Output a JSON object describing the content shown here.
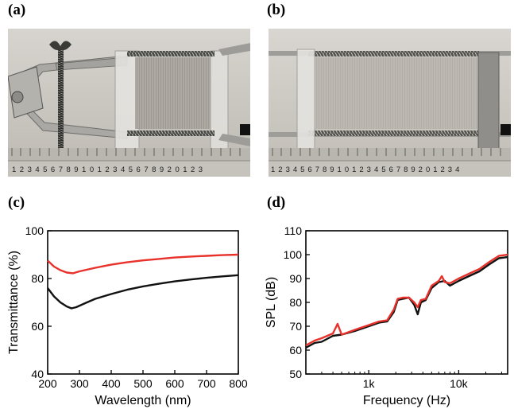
{
  "panels": {
    "a": {
      "label": "(a)"
    },
    "b": {
      "label": "(b)"
    },
    "c": {
      "label": "(c)"
    },
    "d": {
      "label": "(d)"
    }
  },
  "photos": {
    "a": {
      "description": "device with clamp and springs on ruler",
      "ruler_digits": "1234567891012345678920123"
    },
    "b": {
      "description": "stretched device on ruler",
      "ruler_digits": "12345678910123456789201234"
    }
  },
  "colors": {
    "red": "#e8312a",
    "black": "#111111",
    "axis": "#000000"
  },
  "chart_data": [
    {
      "type": "line",
      "xlabel": "Wavelength (nm)",
      "ylabel": "Transmittance (%)",
      "xlim": [
        200,
        800
      ],
      "ylim": [
        40,
        100
      ],
      "xticks": [
        200,
        300,
        400,
        500,
        600,
        700,
        800
      ],
      "yticks": [
        40,
        60,
        80,
        100
      ],
      "grid": false,
      "series": [
        {
          "color": "#e8312a",
          "x": [
            200,
            220,
            240,
            260,
            280,
            300,
            350,
            400,
            450,
            500,
            550,
            600,
            650,
            700,
            750,
            800
          ],
          "y": [
            87.5,
            85,
            83.5,
            82.5,
            82.2,
            83,
            84.5,
            85.8,
            86.8,
            87.6,
            88.2,
            88.8,
            89.2,
            89.5,
            89.8,
            90
          ]
        },
        {
          "color": "#111111",
          "x": [
            200,
            220,
            240,
            260,
            275,
            290,
            320,
            350,
            400,
            450,
            500,
            550,
            600,
            650,
            700,
            750,
            800
          ],
          "y": [
            76,
            72.5,
            70,
            68.3,
            67.5,
            68,
            69.8,
            71.5,
            73.5,
            75.3,
            76.7,
            77.8,
            78.8,
            79.6,
            80.3,
            80.9,
            81.4
          ]
        }
      ]
    },
    {
      "type": "line",
      "xlabel": "Frequency (Hz)",
      "ylabel": "SPL (dB)",
      "xscale": "log",
      "xlim": [
        200,
        35000
      ],
      "ylim": [
        50,
        110
      ],
      "xticks": [
        1000,
        10000
      ],
      "xtick_labels": [
        "1k",
        "10k"
      ],
      "yticks": [
        50,
        60,
        70,
        80,
        90,
        100,
        110
      ],
      "grid": false,
      "series": [
        {
          "color": "#111111",
          "x": [
            200,
            250,
            300,
            400,
            500,
            700,
            1000,
            1300,
            1600,
            1900,
            2100,
            2400,
            2800,
            3200,
            3500,
            3800,
            4300,
            5000,
            6000,
            7000,
            8000,
            10000,
            13000,
            17000,
            22000,
            28000,
            35000
          ],
          "y": [
            61,
            63,
            63.5,
            66,
            66.5,
            68,
            70,
            71.5,
            72,
            76,
            81,
            81.5,
            82,
            79,
            75,
            80,
            81,
            86,
            88.5,
            89,
            87,
            89,
            91,
            93,
            96,
            98.5,
            99
          ]
        },
        {
          "color": "#e8312a",
          "x": [
            200,
            250,
            300,
            400,
            450,
            500,
            700,
            1000,
            1300,
            1600,
            1900,
            2100,
            2400,
            2800,
            3200,
            3500,
            3800,
            4300,
            5000,
            6000,
            6500,
            7000,
            8000,
            10000,
            13000,
            17000,
            22000,
            28000,
            35000
          ],
          "y": [
            62,
            64,
            65,
            67,
            71,
            66.5,
            68.5,
            70.5,
            72,
            72.5,
            77,
            81.5,
            82,
            82,
            80,
            78,
            81,
            81.5,
            87,
            89,
            91,
            88.5,
            88,
            90,
            92,
            94,
            97,
            99.5,
            100
          ]
        }
      ]
    }
  ]
}
